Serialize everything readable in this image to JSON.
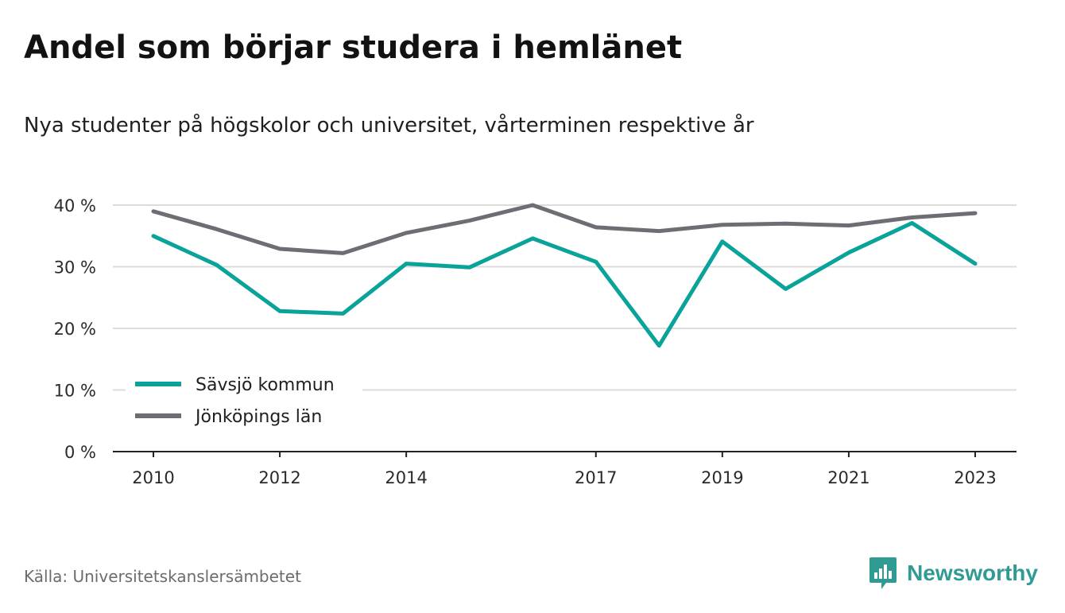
{
  "title": "Andel som börjar studera i hemlänet",
  "subtitle": "Nya studenter på högskolor och universitet, vårterminen respektive år",
  "source": "Källa: Universitetskanslersämbetet",
  "brand": {
    "name": "Newsworthy",
    "icon": "newsworthy-logo-icon",
    "color": "#2f9b93"
  },
  "chart_data": {
    "type": "line",
    "x": [
      2010,
      2011,
      2012,
      2013,
      2014,
      2015,
      2016,
      2017,
      2018,
      2019,
      2020,
      2021,
      2022,
      2023
    ],
    "x_tick_labels": [
      "2010",
      "2012",
      "2014",
      "2017",
      "2019",
      "2021",
      "2023"
    ],
    "y_tick_labels": [
      "0 %",
      "10 %",
      "20 %",
      "30 %",
      "40 %"
    ],
    "yticks": [
      0,
      10,
      20,
      30,
      40
    ],
    "ylim": [
      0,
      40
    ],
    "grid": true,
    "legend_position": "bottom-left",
    "series": [
      {
        "name": "Sävsjö kommun",
        "color": "#0aa39a",
        "values": [
          35.0,
          30.3,
          22.8,
          22.4,
          30.5,
          29.9,
          34.6,
          30.8,
          17.2,
          34.1,
          26.4,
          32.3,
          37.1,
          30.5
        ]
      },
      {
        "name": "Jönköpings län",
        "color": "#6e6d74",
        "values": [
          39.0,
          36.1,
          32.9,
          32.2,
          35.5,
          37.5,
          40.0,
          36.4,
          35.8,
          36.8,
          37.0,
          36.7,
          38.0,
          38.7
        ]
      }
    ]
  }
}
